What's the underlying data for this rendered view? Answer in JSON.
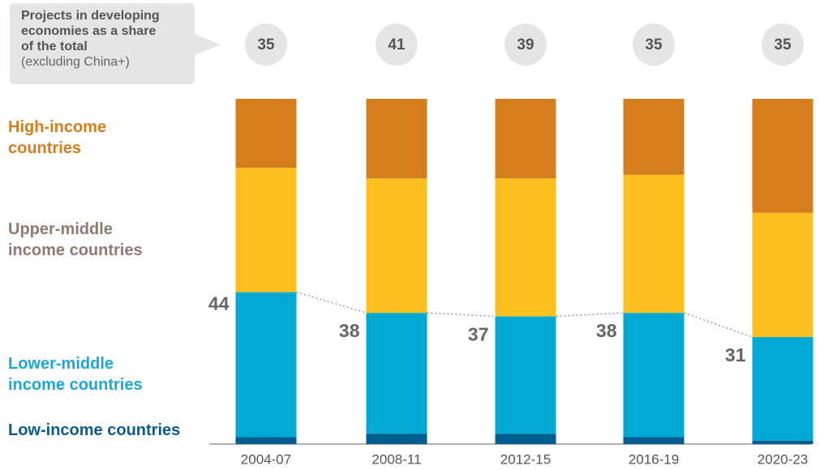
{
  "chart_data": {
    "type": "bar",
    "stacked": true,
    "callout": [
      "Projects in developing",
      "economies as a share",
      "of the total"
    ],
    "callout_note": "(excluding China+)",
    "categories": [
      "2004-07",
      "2008-11",
      "2012-15",
      "2016-19",
      "2020-23"
    ],
    "developing_share": [
      35,
      41,
      39,
      35,
      35
    ],
    "series": [
      {
        "name": "Low-income countries",
        "color": "#005d8f",
        "label_color": "#0d5a8c",
        "values": [
          2,
          3,
          3,
          2,
          1
        ]
      },
      {
        "name": "Lower-middle income countries",
        "color": "#00a9d4",
        "label_color": "#1aa7d9",
        "values": [
          42,
          35,
          34,
          36,
          30
        ]
      },
      {
        "name": "Upper-middle income countries",
        "color": "#fbc01e",
        "label_color": "#8b7b72",
        "values": [
          36,
          39,
          40,
          40,
          36
        ]
      },
      {
        "name": "High-income countries",
        "color": "#d47e1d",
        "label_color": "#d47e1d",
        "values": [
          20,
          23,
          23,
          22,
          33
        ]
      }
    ],
    "low_and_lower_middle_share": [
      44,
      38,
      37,
      38,
      31
    ],
    "ylim": [
      0,
      100
    ]
  }
}
